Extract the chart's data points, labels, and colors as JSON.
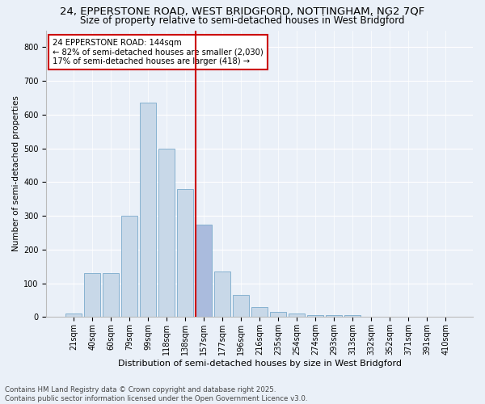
{
  "title1": "24, EPPERSTONE ROAD, WEST BRIDGFORD, NOTTINGHAM, NG2 7QF",
  "title2": "Size of property relative to semi-detached houses in West Bridgford",
  "xlabel": "Distribution of semi-detached houses by size in West Bridgford",
  "ylabel": "Number of semi-detached properties",
  "footnote1": "Contains HM Land Registry data © Crown copyright and database right 2025.",
  "footnote2": "Contains public sector information licensed under the Open Government Licence v3.0.",
  "bar_labels": [
    "21sqm",
    "40sqm",
    "60sqm",
    "79sqm",
    "99sqm",
    "118sqm",
    "138sqm",
    "157sqm",
    "177sqm",
    "196sqm",
    "216sqm",
    "235sqm",
    "254sqm",
    "274sqm",
    "293sqm",
    "313sqm",
    "332sqm",
    "352sqm",
    "371sqm",
    "391sqm",
    "410sqm"
  ],
  "bar_values": [
    10,
    130,
    130,
    300,
    635,
    500,
    380,
    275,
    135,
    65,
    30,
    15,
    10,
    5,
    5,
    5,
    2,
    2,
    2,
    0,
    0
  ],
  "bar_color": "#c8d8e8",
  "bar_edge_color": "#7aaacc",
  "highlight_bar_index": 7,
  "highlight_bar_color": "#aabbdd",
  "vline_x_index": 7,
  "vline_color": "#cc0000",
  "annotation_title": "24 EPPERSTONE ROAD: 144sqm",
  "annotation_line1": "← 82% of semi-detached houses are smaller (2,030)",
  "annotation_line2": "17% of semi-detached houses are larger (418) →",
  "annotation_box_edge_color": "#cc0000",
  "ylim": [
    0,
    850
  ],
  "yticks": [
    0,
    100,
    200,
    300,
    400,
    500,
    600,
    700,
    800
  ],
  "background_color": "#eaf0f8",
  "plot_bg_color": "#eaf0f8",
  "title_fontsize": 9.5,
  "subtitle_fontsize": 8.5,
  "axis_label_fontsize": 8,
  "tick_fontsize": 7,
  "ylabel_fontsize": 7.5
}
